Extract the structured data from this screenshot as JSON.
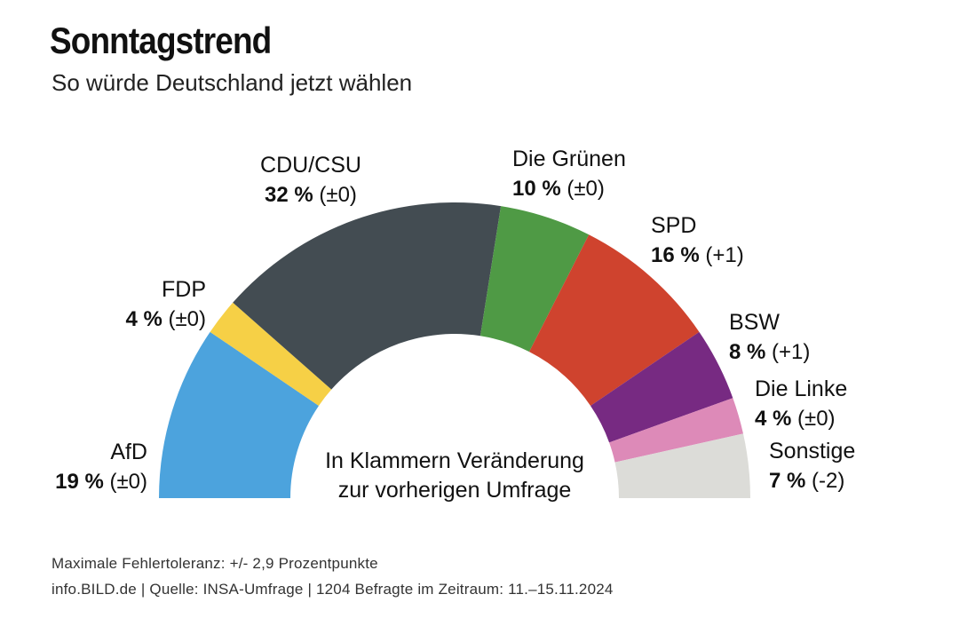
{
  "header": {
    "title": "Sonntagstrend",
    "subtitle": "So würde Deutschland jetzt wählen"
  },
  "chart_data": {
    "type": "pie",
    "variant": "half-donut (parliament semicircle)",
    "title": "Sonntagstrend",
    "subtitle": "So würde Deutschland jetzt wählen",
    "series": [
      {
        "name": "AfD",
        "value": 19,
        "change": "(±0)",
        "color": "#4ca3dd"
      },
      {
        "name": "FDP",
        "value": 4,
        "change": "(±0)",
        "color": "#f6d046"
      },
      {
        "name": "CDU/CSU",
        "value": 32,
        "change": "(±0)",
        "color": "#434c52"
      },
      {
        "name": "Die Grünen",
        "value": 10,
        "change": "(±0)",
        "color": "#4f9a45"
      },
      {
        "name": "SPD",
        "value": 16,
        "change": "(+1)",
        "color": "#cf432e"
      },
      {
        "name": "BSW",
        "value": 8,
        "change": "(+1)",
        "color": "#772a82"
      },
      {
        "name": "Die Linke",
        "value": 4,
        "change": "(±0)",
        "color": "#dd8ab8"
      },
      {
        "name": "Sonstige",
        "value": 7,
        "change": "(-2)",
        "color": "#dcdcd8"
      }
    ],
    "center_note": [
      "In Klammern Veränderung",
      "zur vorherigen Umfrage"
    ],
    "unit": "%"
  },
  "footer": {
    "line1": "Maximale Fehlertoleranz: +/- 2,9 Prozentpunkte",
    "line2": "info.BILD.de | Quelle: INSA-Umfrage | 1204 Befragte im Zeitraum: 11.–15.11.2024"
  }
}
